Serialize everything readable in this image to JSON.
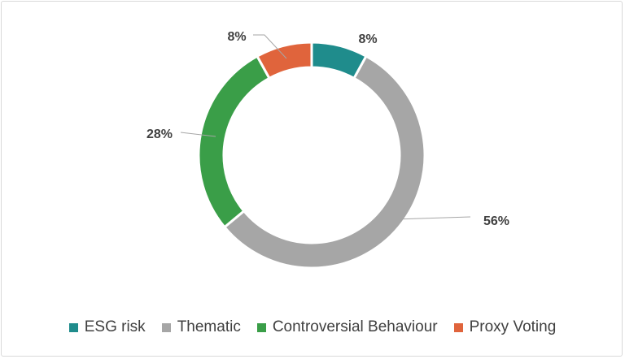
{
  "chart_data": {
    "type": "pie",
    "donut": true,
    "title": "",
    "categories": [
      "ESG risk",
      "Thematic",
      "Controversial Behaviour",
      "Proxy Voting"
    ],
    "values": [
      8,
      56,
      28,
      8
    ],
    "data_labels": [
      "8%",
      "56%",
      "28%",
      "8%"
    ],
    "colors": [
      "#1f8c8c",
      "#a6a6a6",
      "#3a9e48",
      "#e0643c"
    ],
    "legend_position": "bottom"
  }
}
